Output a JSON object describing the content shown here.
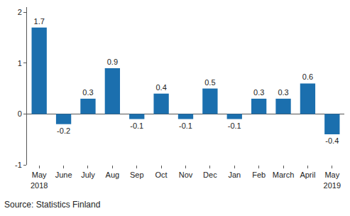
{
  "chart_data": {
    "type": "bar",
    "categories": [
      "May 2018",
      "June",
      "July",
      "Aug",
      "Sep",
      "Oct",
      "Nov",
      "Dec",
      "Jan",
      "Feb",
      "March",
      "April",
      "May 2019"
    ],
    "values": [
      1.7,
      -0.2,
      0.3,
      0.9,
      -0.1,
      0.4,
      -0.1,
      0.5,
      -0.1,
      0.3,
      0.3,
      0.6,
      -0.4
    ],
    "color": "#1b6fae",
    "ylim": [
      -1,
      2.1
    ],
    "yticks": [
      -1,
      0,
      1,
      2
    ],
    "grid": false,
    "data_labels": true,
    "source": "Source: Statistics Finland"
  }
}
